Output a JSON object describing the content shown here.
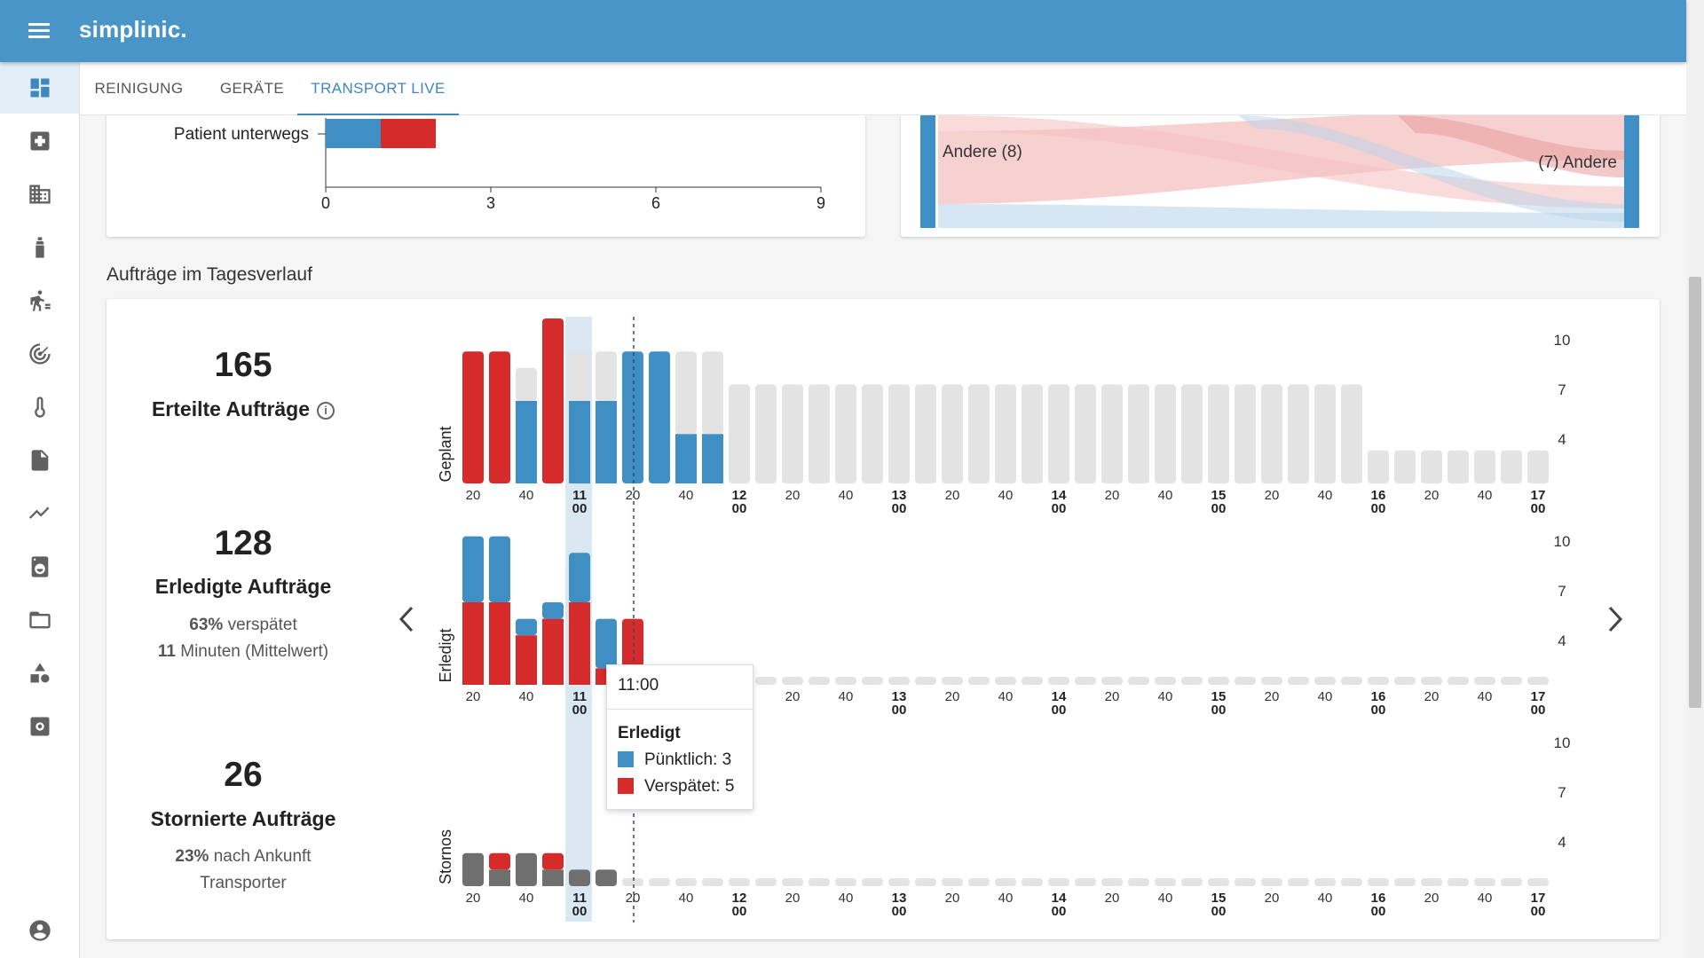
{
  "app": {
    "brand": "simplinic."
  },
  "tabs": [
    {
      "label": "REINIGUNG"
    },
    {
      "label": "GERÄTE"
    },
    {
      "label": "TRANSPORT LIVE"
    }
  ],
  "sidebar_icons": [
    "dashboard-icon",
    "medical-cross-icon",
    "building-icon",
    "spray-bottle-icon",
    "patient-transport-icon",
    "radar-icon",
    "thermometer-icon",
    "document-icon",
    "trend-icon",
    "washing-machine-icon",
    "folder-icon",
    "shapes-icon",
    "settings-icon",
    "account-icon"
  ],
  "top_left_chart": {
    "row_label": "Patient unterwegs",
    "segments": [
      {
        "value": 1,
        "color": "#3f8ec4"
      },
      {
        "value": 1,
        "color": "#d62b2b"
      }
    ],
    "ticks": [
      "0",
      "3",
      "6",
      "9"
    ]
  },
  "top_right_sankey": {
    "left_label": "Andere (8)",
    "right_label": "(7) Andere"
  },
  "section": {
    "title": "Aufträge im Tagesverlauf"
  },
  "stats": {
    "erteilt": {
      "value": "165",
      "label": "Erteilte Aufträge"
    },
    "erledigt": {
      "value": "128",
      "label": "Erledigte Aufträge",
      "late_pct": "63%",
      "late_text": " verspätet",
      "avg_val": "11",
      "avg_text": " Minuten (Mittelwert)"
    },
    "storniert": {
      "value": "26",
      "label": "Stornierte Aufträge",
      "pct": "23%",
      "pct_text": " nach Ankunft",
      "line2": "Transporter"
    }
  },
  "colors": {
    "blue": "#3f8ec4",
    "red": "#d62b2b",
    "grey": "#e3e3e3",
    "dark": "#6f6f6f",
    "highlight": "#dae8f4"
  },
  "chart_data": {
    "type": "bar",
    "x_tick_labels": [
      "20",
      "40",
      "11|00",
      "20",
      "40",
      "12|00",
      "20",
      "40",
      "13|00",
      "20",
      "40",
      "14|00",
      "20",
      "40",
      "15|00",
      "20",
      "40",
      "16|00",
      "20",
      "40",
      "17|00"
    ],
    "y_ticks": [
      "10",
      "7",
      "4"
    ],
    "highlight_time": "11:00",
    "panels": [
      {
        "name": "Geplant",
        "bars": [
          [
            [
              "r",
              8
            ]
          ],
          [
            [
              "r",
              8
            ]
          ],
          [
            [
              "b",
              5
            ],
            [
              "g",
              2
            ]
          ],
          [
            [
              "r",
              10
            ]
          ],
          [
            [
              "b",
              5
            ],
            [
              "g",
              3
            ]
          ],
          [
            [
              "b",
              5
            ],
            [
              "g",
              3
            ]
          ],
          [
            [
              "b",
              8
            ]
          ],
          [
            [
              "b",
              8
            ]
          ],
          [
            [
              "b",
              3
            ],
            [
              "g",
              5
            ]
          ],
          [
            [
              "b",
              3
            ],
            [
              "g",
              5
            ]
          ],
          [
            [
              "g",
              6
            ]
          ],
          [
            [
              "g",
              6
            ]
          ],
          [
            [
              "g",
              6
            ]
          ],
          [
            [
              "g",
              6
            ]
          ],
          [
            [
              "g",
              6
            ]
          ],
          [
            [
              "g",
              6
            ]
          ],
          [
            [
              "g",
              6
            ]
          ],
          [
            [
              "g",
              6
            ]
          ],
          [
            [
              "g",
              6
            ]
          ],
          [
            [
              "g",
              6
            ]
          ],
          [
            [
              "g",
              6
            ]
          ],
          [
            [
              "g",
              6
            ]
          ],
          [
            [
              "g",
              6
            ]
          ],
          [
            [
              "g",
              6
            ]
          ],
          [
            [
              "g",
              6
            ]
          ],
          [
            [
              "g",
              6
            ]
          ],
          [
            [
              "g",
              6
            ]
          ],
          [
            [
              "g",
              6
            ]
          ],
          [
            [
              "g",
              6
            ]
          ],
          [
            [
              "g",
              6
            ]
          ],
          [
            [
              "g",
              6
            ]
          ],
          [
            [
              "g",
              6
            ]
          ],
          [
            [
              "g",
              6
            ]
          ],
          [
            [
              "g",
              6
            ]
          ],
          [
            [
              "g",
              2
            ]
          ],
          [
            [
              "g",
              2
            ]
          ],
          [
            [
              "g",
              2
            ]
          ],
          [
            [
              "g",
              2
            ]
          ],
          [
            [
              "g",
              2
            ]
          ],
          [
            [
              "g",
              2
            ]
          ],
          [
            [
              "g",
              2
            ]
          ]
        ]
      },
      {
        "name": "Erledigt",
        "bars": [
          [
            [
              "r",
              5
            ],
            [
              "b",
              4
            ]
          ],
          [
            [
              "r",
              5
            ],
            [
              "b",
              4
            ]
          ],
          [
            [
              "r",
              3
            ],
            [
              "b",
              1
            ]
          ],
          [
            [
              "r",
              4
            ],
            [
              "b",
              1
            ]
          ],
          [
            [
              "r",
              5
            ],
            [
              "b",
              3
            ]
          ],
          [
            [
              "r",
              1
            ],
            [
              "b",
              3
            ]
          ],
          [
            [
              "r",
              4
            ]
          ],
          [
            [
              "g",
              0
            ]
          ],
          [
            [
              "g",
              0
            ]
          ],
          [
            [
              "g",
              0
            ]
          ],
          [
            [
              "g",
              0
            ]
          ],
          [
            [
              "g",
              0
            ]
          ],
          [
            [
              "g",
              0
            ]
          ],
          [
            [
              "g",
              0
            ]
          ],
          [
            [
              "g",
              0
            ]
          ],
          [
            [
              "g",
              0
            ]
          ],
          [
            [
              "g",
              0
            ]
          ],
          [
            [
              "g",
              0
            ]
          ],
          [
            [
              "g",
              0
            ]
          ],
          [
            [
              "g",
              0
            ]
          ],
          [
            [
              "g",
              0
            ]
          ],
          [
            [
              "g",
              0
            ]
          ],
          [
            [
              "g",
              0
            ]
          ],
          [
            [
              "g",
              0
            ]
          ],
          [
            [
              "g",
              0
            ]
          ],
          [
            [
              "g",
              0
            ]
          ],
          [
            [
              "g",
              0
            ]
          ],
          [
            [
              "g",
              0
            ]
          ],
          [
            [
              "g",
              0
            ]
          ],
          [
            [
              "g",
              0
            ]
          ],
          [
            [
              "g",
              0
            ]
          ],
          [
            [
              "g",
              0
            ]
          ],
          [
            [
              "g",
              0
            ]
          ],
          [
            [
              "g",
              0
            ]
          ],
          [
            [
              "g",
              0
            ]
          ],
          [
            [
              "g",
              0
            ]
          ],
          [
            [
              "g",
              0
            ]
          ],
          [
            [
              "g",
              0
            ]
          ],
          [
            [
              "g",
              0
            ]
          ],
          [
            [
              "g",
              0
            ]
          ],
          [
            [
              "g",
              0
            ]
          ]
        ]
      },
      {
        "name": "Stornos",
        "bars": [
          [
            [
              "d",
              2
            ]
          ],
          [
            [
              "d",
              1
            ],
            [
              "r",
              1
            ]
          ],
          [
            [
              "d",
              2
            ]
          ],
          [
            [
              "d",
              1
            ],
            [
              "r",
              1
            ]
          ],
          [
            [
              "d",
              1
            ]
          ],
          [
            [
              "d",
              1
            ]
          ],
          [
            [
              "g",
              0
            ]
          ],
          [
            [
              "g",
              0
            ]
          ],
          [
            [
              "g",
              0
            ]
          ],
          [
            [
              "g",
              0
            ]
          ],
          [
            [
              "g",
              0
            ]
          ],
          [
            [
              "g",
              0
            ]
          ],
          [
            [
              "g",
              0
            ]
          ],
          [
            [
              "g",
              0
            ]
          ],
          [
            [
              "g",
              0
            ]
          ],
          [
            [
              "g",
              0
            ]
          ],
          [
            [
              "g",
              0
            ]
          ],
          [
            [
              "g",
              0
            ]
          ],
          [
            [
              "g",
              0
            ]
          ],
          [
            [
              "g",
              0
            ]
          ],
          [
            [
              "g",
              0
            ]
          ],
          [
            [
              "g",
              0
            ]
          ],
          [
            [
              "g",
              0
            ]
          ],
          [
            [
              "g",
              0
            ]
          ],
          [
            [
              "g",
              0
            ]
          ],
          [
            [
              "g",
              0
            ]
          ],
          [
            [
              "g",
              0
            ]
          ],
          [
            [
              "g",
              0
            ]
          ],
          [
            [
              "g",
              0
            ]
          ],
          [
            [
              "g",
              0
            ]
          ],
          [
            [
              "g",
              0
            ]
          ],
          [
            [
              "g",
              0
            ]
          ],
          [
            [
              "g",
              0
            ]
          ],
          [
            [
              "g",
              0
            ]
          ],
          [
            [
              "g",
              0
            ]
          ],
          [
            [
              "g",
              0
            ]
          ],
          [
            [
              "g",
              0
            ]
          ],
          [
            [
              "g",
              0
            ]
          ],
          [
            [
              "g",
              0
            ]
          ],
          [
            [
              "g",
              0
            ]
          ],
          [
            [
              "g",
              0
            ]
          ]
        ]
      }
    ]
  },
  "tooltip": {
    "time": "11:00",
    "title": "Erledigt",
    "rows": [
      {
        "label": "Pünktlich: 3",
        "color": "#3f8ec4"
      },
      {
        "label": "Verspätet: 5",
        "color": "#d62b2b"
      }
    ]
  }
}
